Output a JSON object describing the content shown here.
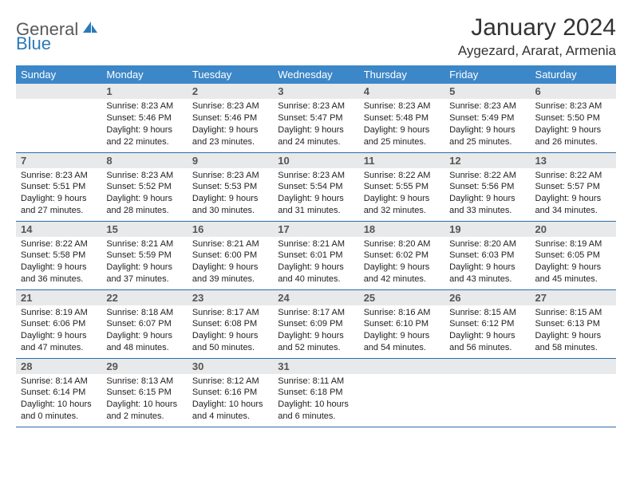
{
  "brand": {
    "part1": "General",
    "part2": "Blue"
  },
  "title": "January 2024",
  "location": "Aygezard, Ararat, Armenia",
  "colors": {
    "header_bg": "#3c87c8",
    "header_text": "#ffffff",
    "daynum_bg": "#e8e9ea",
    "row_border": "#2a6ca8",
    "brand_gray": "#58595b",
    "brand_blue": "#2a7ab9"
  },
  "weekdays": [
    "Sunday",
    "Monday",
    "Tuesday",
    "Wednesday",
    "Thursday",
    "Friday",
    "Saturday"
  ],
  "weeks": [
    [
      {
        "n": "",
        "sr": "",
        "ss": "",
        "dl": ""
      },
      {
        "n": "1",
        "sr": "Sunrise: 8:23 AM",
        "ss": "Sunset: 5:46 PM",
        "dl": "Daylight: 9 hours and 22 minutes."
      },
      {
        "n": "2",
        "sr": "Sunrise: 8:23 AM",
        "ss": "Sunset: 5:46 PM",
        "dl": "Daylight: 9 hours and 23 minutes."
      },
      {
        "n": "3",
        "sr": "Sunrise: 8:23 AM",
        "ss": "Sunset: 5:47 PM",
        "dl": "Daylight: 9 hours and 24 minutes."
      },
      {
        "n": "4",
        "sr": "Sunrise: 8:23 AM",
        "ss": "Sunset: 5:48 PM",
        "dl": "Daylight: 9 hours and 25 minutes."
      },
      {
        "n": "5",
        "sr": "Sunrise: 8:23 AM",
        "ss": "Sunset: 5:49 PM",
        "dl": "Daylight: 9 hours and 25 minutes."
      },
      {
        "n": "6",
        "sr": "Sunrise: 8:23 AM",
        "ss": "Sunset: 5:50 PM",
        "dl": "Daylight: 9 hours and 26 minutes."
      }
    ],
    [
      {
        "n": "7",
        "sr": "Sunrise: 8:23 AM",
        "ss": "Sunset: 5:51 PM",
        "dl": "Daylight: 9 hours and 27 minutes."
      },
      {
        "n": "8",
        "sr": "Sunrise: 8:23 AM",
        "ss": "Sunset: 5:52 PM",
        "dl": "Daylight: 9 hours and 28 minutes."
      },
      {
        "n": "9",
        "sr": "Sunrise: 8:23 AM",
        "ss": "Sunset: 5:53 PM",
        "dl": "Daylight: 9 hours and 30 minutes."
      },
      {
        "n": "10",
        "sr": "Sunrise: 8:23 AM",
        "ss": "Sunset: 5:54 PM",
        "dl": "Daylight: 9 hours and 31 minutes."
      },
      {
        "n": "11",
        "sr": "Sunrise: 8:22 AM",
        "ss": "Sunset: 5:55 PM",
        "dl": "Daylight: 9 hours and 32 minutes."
      },
      {
        "n": "12",
        "sr": "Sunrise: 8:22 AM",
        "ss": "Sunset: 5:56 PM",
        "dl": "Daylight: 9 hours and 33 minutes."
      },
      {
        "n": "13",
        "sr": "Sunrise: 8:22 AM",
        "ss": "Sunset: 5:57 PM",
        "dl": "Daylight: 9 hours and 34 minutes."
      }
    ],
    [
      {
        "n": "14",
        "sr": "Sunrise: 8:22 AM",
        "ss": "Sunset: 5:58 PM",
        "dl": "Daylight: 9 hours and 36 minutes."
      },
      {
        "n": "15",
        "sr": "Sunrise: 8:21 AM",
        "ss": "Sunset: 5:59 PM",
        "dl": "Daylight: 9 hours and 37 minutes."
      },
      {
        "n": "16",
        "sr": "Sunrise: 8:21 AM",
        "ss": "Sunset: 6:00 PM",
        "dl": "Daylight: 9 hours and 39 minutes."
      },
      {
        "n": "17",
        "sr": "Sunrise: 8:21 AM",
        "ss": "Sunset: 6:01 PM",
        "dl": "Daylight: 9 hours and 40 minutes."
      },
      {
        "n": "18",
        "sr": "Sunrise: 8:20 AM",
        "ss": "Sunset: 6:02 PM",
        "dl": "Daylight: 9 hours and 42 minutes."
      },
      {
        "n": "19",
        "sr": "Sunrise: 8:20 AM",
        "ss": "Sunset: 6:03 PM",
        "dl": "Daylight: 9 hours and 43 minutes."
      },
      {
        "n": "20",
        "sr": "Sunrise: 8:19 AM",
        "ss": "Sunset: 6:05 PM",
        "dl": "Daylight: 9 hours and 45 minutes."
      }
    ],
    [
      {
        "n": "21",
        "sr": "Sunrise: 8:19 AM",
        "ss": "Sunset: 6:06 PM",
        "dl": "Daylight: 9 hours and 47 minutes."
      },
      {
        "n": "22",
        "sr": "Sunrise: 8:18 AM",
        "ss": "Sunset: 6:07 PM",
        "dl": "Daylight: 9 hours and 48 minutes."
      },
      {
        "n": "23",
        "sr": "Sunrise: 8:17 AM",
        "ss": "Sunset: 6:08 PM",
        "dl": "Daylight: 9 hours and 50 minutes."
      },
      {
        "n": "24",
        "sr": "Sunrise: 8:17 AM",
        "ss": "Sunset: 6:09 PM",
        "dl": "Daylight: 9 hours and 52 minutes."
      },
      {
        "n": "25",
        "sr": "Sunrise: 8:16 AM",
        "ss": "Sunset: 6:10 PM",
        "dl": "Daylight: 9 hours and 54 minutes."
      },
      {
        "n": "26",
        "sr": "Sunrise: 8:15 AM",
        "ss": "Sunset: 6:12 PM",
        "dl": "Daylight: 9 hours and 56 minutes."
      },
      {
        "n": "27",
        "sr": "Sunrise: 8:15 AM",
        "ss": "Sunset: 6:13 PM",
        "dl": "Daylight: 9 hours and 58 minutes."
      }
    ],
    [
      {
        "n": "28",
        "sr": "Sunrise: 8:14 AM",
        "ss": "Sunset: 6:14 PM",
        "dl": "Daylight: 10 hours and 0 minutes."
      },
      {
        "n": "29",
        "sr": "Sunrise: 8:13 AM",
        "ss": "Sunset: 6:15 PM",
        "dl": "Daylight: 10 hours and 2 minutes."
      },
      {
        "n": "30",
        "sr": "Sunrise: 8:12 AM",
        "ss": "Sunset: 6:16 PM",
        "dl": "Daylight: 10 hours and 4 minutes."
      },
      {
        "n": "31",
        "sr": "Sunrise: 8:11 AM",
        "ss": "Sunset: 6:18 PM",
        "dl": "Daylight: 10 hours and 6 minutes."
      },
      {
        "n": "",
        "sr": "",
        "ss": "",
        "dl": ""
      },
      {
        "n": "",
        "sr": "",
        "ss": "",
        "dl": ""
      },
      {
        "n": "",
        "sr": "",
        "ss": "",
        "dl": ""
      }
    ]
  ]
}
